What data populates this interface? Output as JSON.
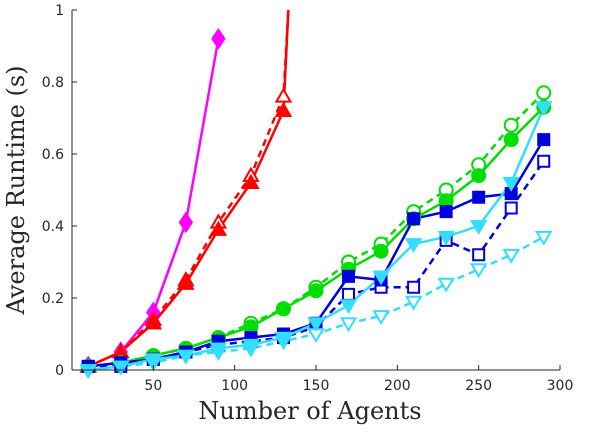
{
  "chart_data": {
    "type": "line",
    "title": "",
    "xlabel": "Number of Agents",
    "ylabel": "Average Runtime (s)",
    "xlim": [
      0,
      300
    ],
    "ylim": [
      0,
      1
    ],
    "xticks": [
      50,
      100,
      150,
      200,
      250,
      300
    ],
    "yticks": [
      0,
      0.2,
      0.4,
      0.6,
      0.8,
      1
    ],
    "xtick_labels": [
      "50",
      "100",
      "150",
      "200",
      "250",
      "300"
    ],
    "ytick_labels": [
      "0",
      "0.2",
      "0.4",
      "0.6",
      "0.8",
      "1"
    ],
    "grid": false,
    "legend": "none",
    "series": [
      {
        "color": "#ff00ff",
        "marker": "diamond",
        "filled": true,
        "dash": false,
        "x": [
          10,
          30,
          50,
          70,
          90
        ],
        "y": [
          0.01,
          0.05,
          0.16,
          0.41,
          0.92
        ]
      },
      {
        "color": "#ff0000",
        "marker": "triangle-up",
        "filled": false,
        "dash": true,
        "x": [
          10,
          30,
          50,
          70,
          90,
          110,
          130,
          133
        ],
        "y": [
          0.01,
          0.05,
          0.14,
          0.25,
          0.41,
          0.54,
          0.76,
          1.0
        ]
      },
      {
        "color": "#ff0000",
        "marker": "triangle-up",
        "filled": true,
        "dash": false,
        "x": [
          10,
          30,
          50,
          70,
          90,
          110,
          130,
          133
        ],
        "y": [
          0.01,
          0.05,
          0.13,
          0.24,
          0.39,
          0.52,
          0.72,
          1.0
        ]
      },
      {
        "color": "#00dd00",
        "marker": "circle",
        "filled": false,
        "dash": true,
        "x": [
          10,
          30,
          50,
          70,
          90,
          110,
          130,
          150,
          170,
          190,
          210,
          230,
          250,
          270,
          290
        ],
        "y": [
          0.01,
          0.02,
          0.04,
          0.06,
          0.09,
          0.13,
          0.17,
          0.23,
          0.3,
          0.35,
          0.44,
          0.5,
          0.57,
          0.68,
          0.77
        ]
      },
      {
        "color": "#00dd00",
        "marker": "circle",
        "filled": true,
        "dash": false,
        "x": [
          10,
          30,
          50,
          70,
          90,
          110,
          130,
          150,
          170,
          190,
          210,
          230,
          250,
          270,
          290
        ],
        "y": [
          0.01,
          0.02,
          0.04,
          0.06,
          0.09,
          0.12,
          0.17,
          0.22,
          0.28,
          0.33,
          0.42,
          0.47,
          0.54,
          0.64,
          0.73
        ]
      },
      {
        "color": "#0000dd",
        "marker": "square",
        "filled": false,
        "dash": true,
        "x": [
          10,
          30,
          50,
          70,
          90,
          110,
          130,
          150,
          170,
          190,
          210,
          230,
          250,
          270,
          290
        ],
        "y": [
          0.01,
          0.01,
          0.03,
          0.05,
          0.07,
          0.08,
          0.09,
          0.12,
          0.21,
          0.23,
          0.23,
          0.36,
          0.32,
          0.45,
          0.58
        ]
      },
      {
        "color": "#0000dd",
        "marker": "square",
        "filled": true,
        "dash": false,
        "x": [
          10,
          30,
          50,
          70,
          90,
          110,
          130,
          150,
          170,
          190,
          210,
          230,
          250,
          270,
          290
        ],
        "y": [
          0.01,
          0.02,
          0.03,
          0.05,
          0.08,
          0.09,
          0.1,
          0.13,
          0.26,
          0.25,
          0.42,
          0.44,
          0.48,
          0.49,
          0.64
        ]
      },
      {
        "color": "#33ddff",
        "marker": "triangle-down",
        "filled": false,
        "dash": true,
        "x": [
          10,
          30,
          50,
          70,
          90,
          110,
          130,
          150,
          170,
          190,
          210,
          230,
          250,
          270,
          290
        ],
        "y": [
          0.0,
          0.01,
          0.02,
          0.04,
          0.05,
          0.06,
          0.08,
          0.1,
          0.13,
          0.15,
          0.19,
          0.24,
          0.28,
          0.32,
          0.37
        ]
      },
      {
        "color": "#33ddff",
        "marker": "triangle-down",
        "filled": true,
        "dash": false,
        "x": [
          10,
          30,
          50,
          70,
          90,
          110,
          130,
          150,
          170,
          190,
          210,
          230,
          250,
          270,
          290
        ],
        "y": [
          0.0,
          0.01,
          0.03,
          0.04,
          0.06,
          0.07,
          0.09,
          0.13,
          0.18,
          0.26,
          0.35,
          0.37,
          0.4,
          0.52,
          0.73
        ]
      }
    ]
  }
}
